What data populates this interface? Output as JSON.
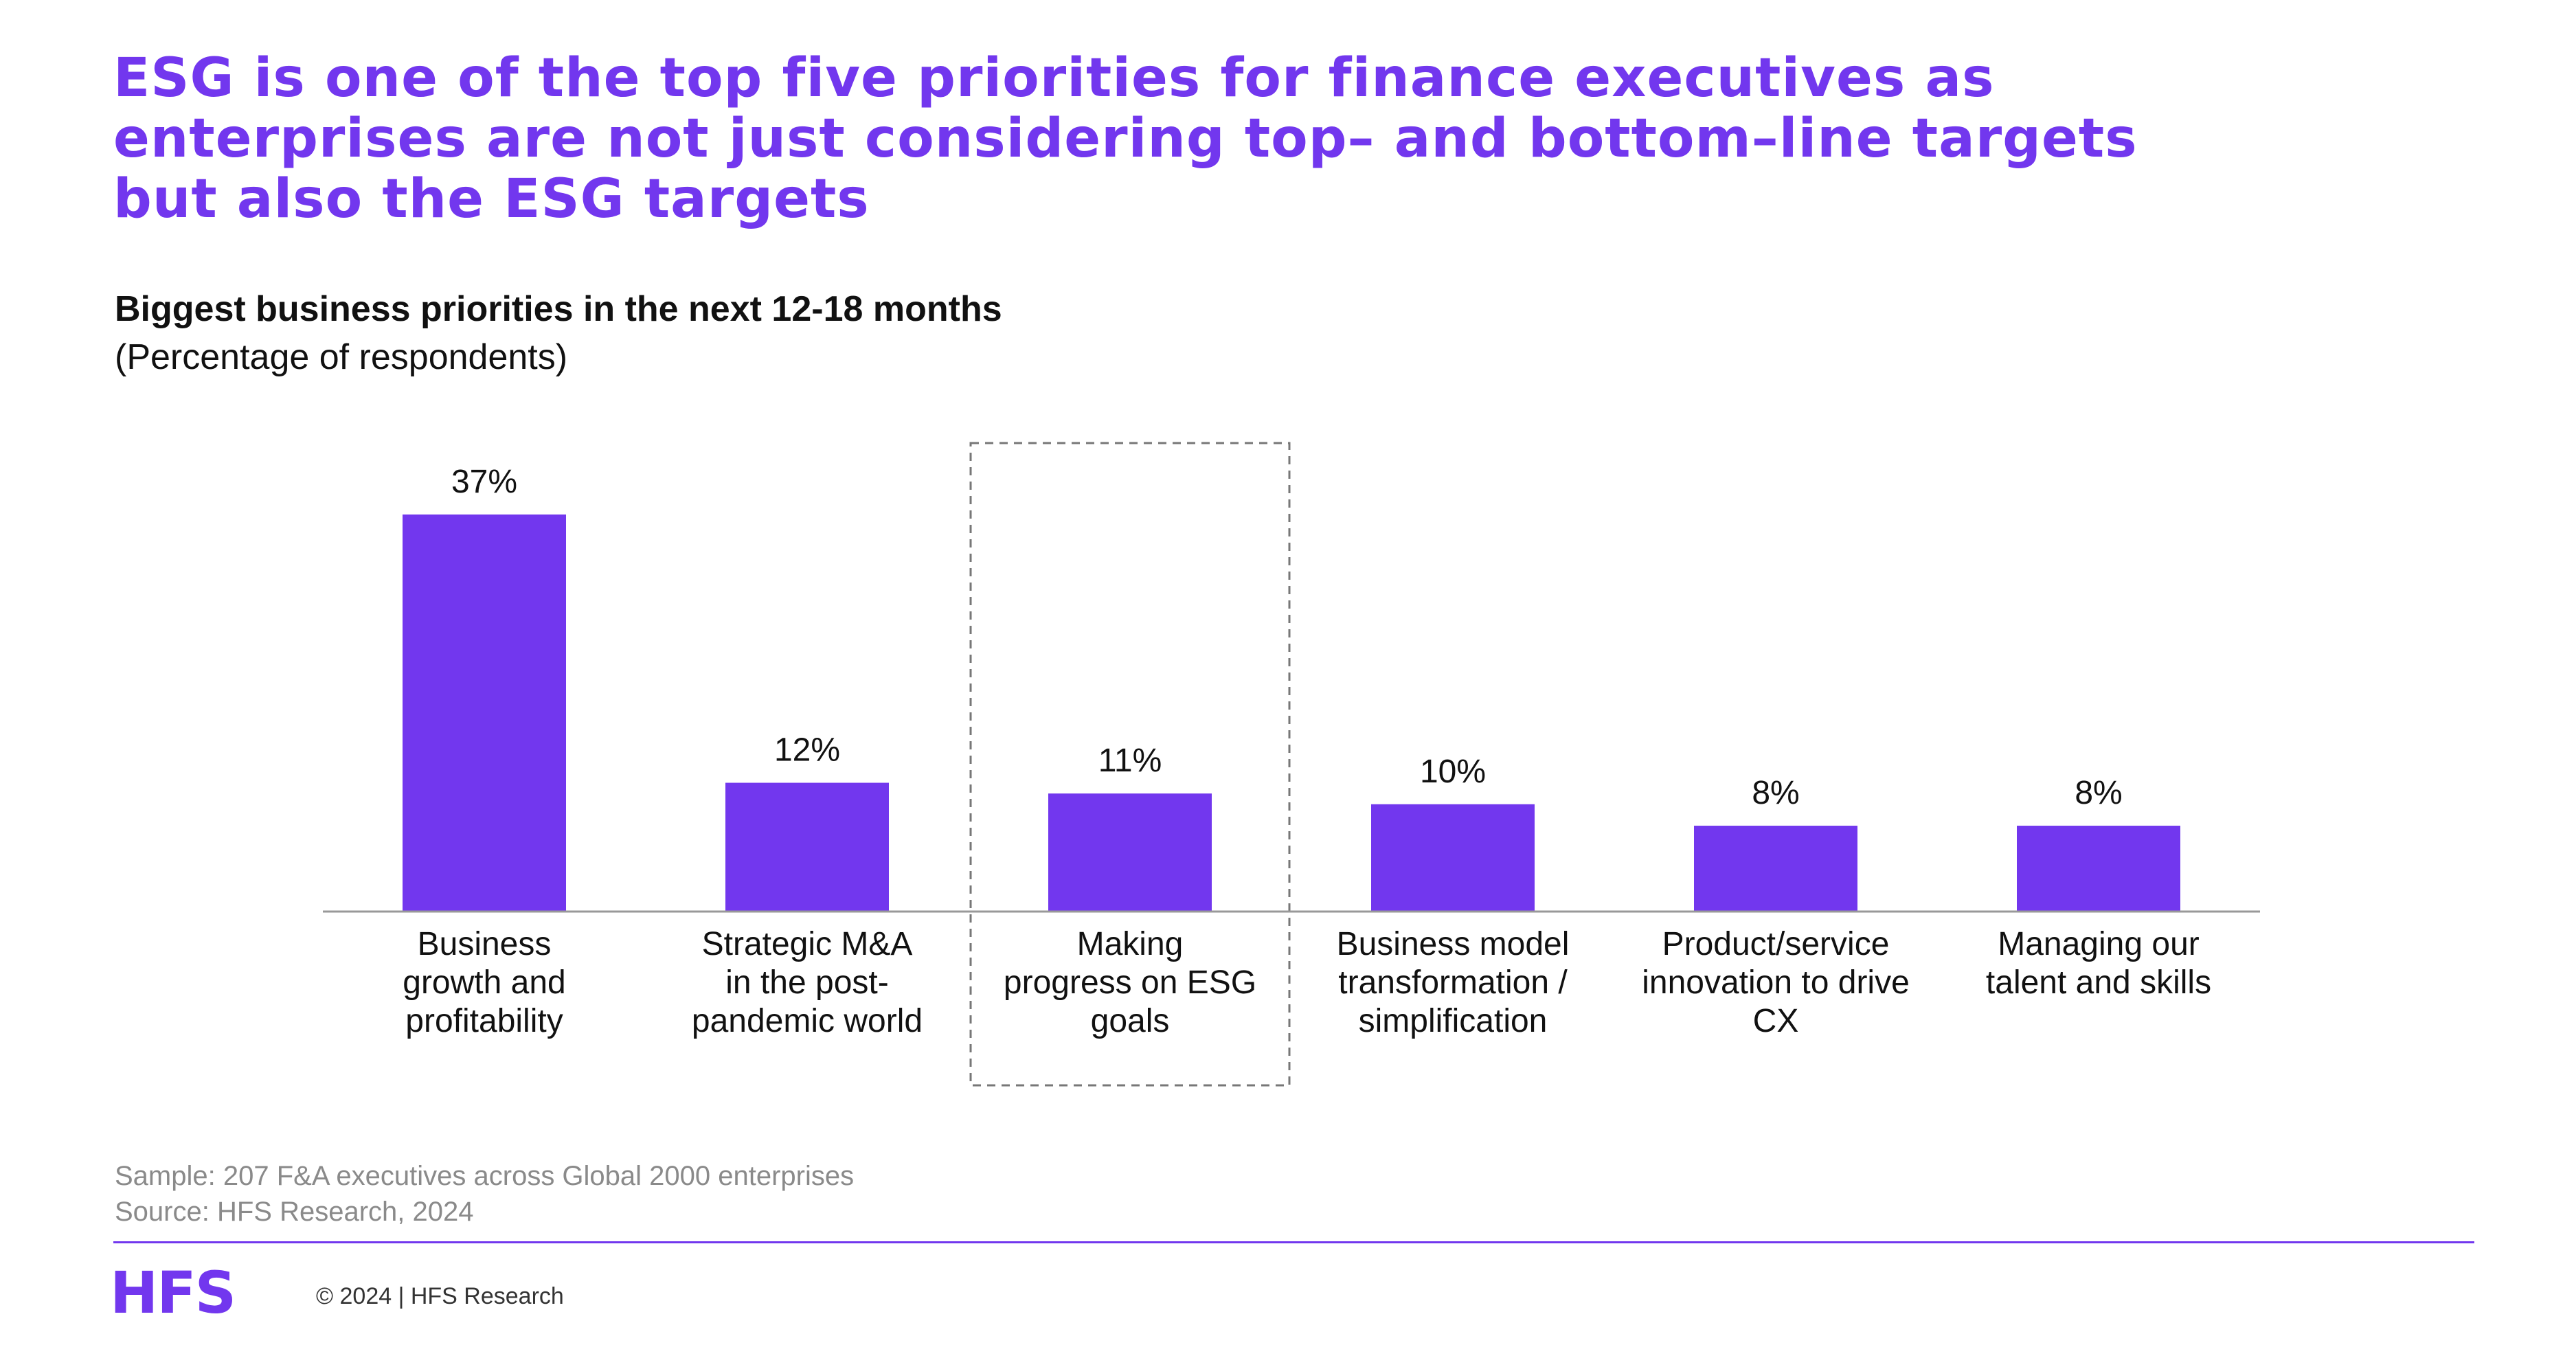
{
  "headline": {
    "line1": "ESG is one of the top five priorities for finance executives as",
    "line2": "enterprises are not just considering top– and bottom–line targets",
    "line3": "but also the ESG targets"
  },
  "chart_data": {
    "type": "bar",
    "title": "Biggest business priorities in the next 12-18 months",
    "subtitle": "(Percentage of respondents)",
    "categories": [
      [
        "Business",
        "growth and",
        "profitability"
      ],
      [
        "Strategic M&A",
        "in the post-",
        "pandemic world"
      ],
      [
        "Making",
        "progress on ESG",
        "goals"
      ],
      [
        "Business model",
        "transformation /",
        "simplification"
      ],
      [
        "Product/service",
        "innovation to drive",
        "CX"
      ],
      [
        "Managing our",
        "talent and skills"
      ]
    ],
    "values": [
      37,
      12,
      11,
      10,
      8,
      8
    ],
    "value_labels": [
      "37%",
      "12%",
      "11%",
      "10%",
      "8%",
      "8%"
    ],
    "highlighted_index": 2,
    "bar_color": "#7237ee",
    "ylim": [
      0,
      37
    ]
  },
  "notes": {
    "sample": "Sample: 207 F&A executives across Global 2000 enterprises",
    "source": "Source: HFS Research, 2024"
  },
  "footer": {
    "logo": "HFS",
    "copyright": "© 2024 | HFS Research"
  },
  "colors": {
    "accent": "#7237ee"
  }
}
